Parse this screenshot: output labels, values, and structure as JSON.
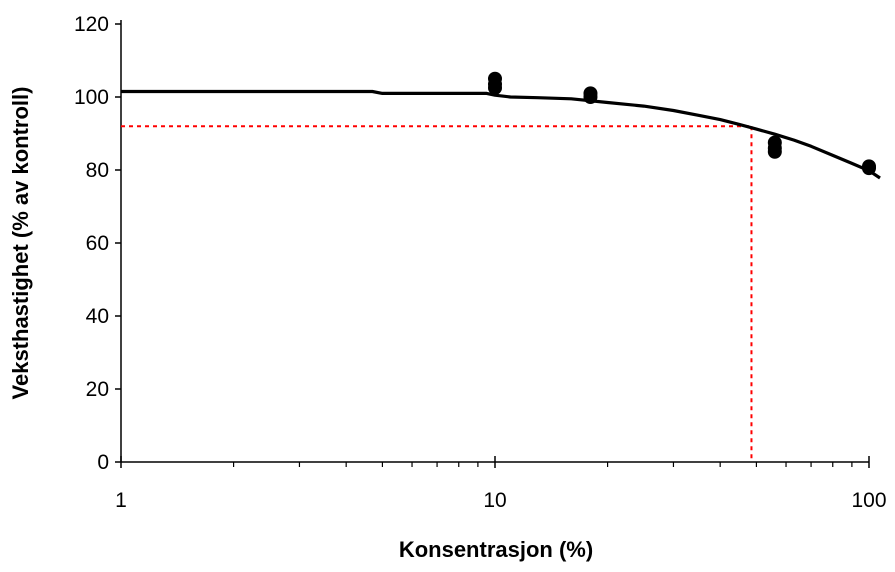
{
  "chart_data": {
    "type": "scatter",
    "title": "",
    "xlabel": "Konsentrasjon (%)",
    "ylabel": "Veksthastighet (% av kontroll)",
    "xscale": "log",
    "xlim": [
      1,
      100
    ],
    "ylim": [
      0,
      120
    ],
    "x_ticks": [
      1,
      10,
      100
    ],
    "y_ticks": [
      0,
      20,
      40,
      60,
      80,
      100,
      120
    ],
    "grid": false,
    "legend": "none",
    "series": [
      {
        "type": "scatter",
        "color": "#000000",
        "points": [
          {
            "x": 10,
            "y": 105
          },
          {
            "x": 10,
            "y": 103.5
          },
          {
            "x": 10,
            "y": 102.5
          },
          {
            "x": 18,
            "y": 101
          },
          {
            "x": 18,
            "y": 100
          },
          {
            "x": 56,
            "y": 87.5
          },
          {
            "x": 56,
            "y": 86
          },
          {
            "x": 56,
            "y": 85
          },
          {
            "x": 100,
            "y": 81
          },
          {
            "x": 100,
            "y": 80.5
          }
        ]
      },
      {
        "type": "line",
        "color": "#000000",
        "points": [
          {
            "x": 1,
            "y": 101.5
          },
          {
            "x": 4.7,
            "y": 101.5
          },
          {
            "x": 5,
            "y": 101
          },
          {
            "x": 9.5,
            "y": 101
          },
          {
            "x": 10,
            "y": 100.5
          },
          {
            "x": 11,
            "y": 100
          },
          {
            "x": 13,
            "y": 99.8
          },
          {
            "x": 16,
            "y": 99.5
          },
          {
            "x": 20,
            "y": 98.5
          },
          {
            "x": 25,
            "y": 97.5
          },
          {
            "x": 30,
            "y": 96.3
          },
          {
            "x": 35,
            "y": 95
          },
          {
            "x": 40,
            "y": 93.8
          },
          {
            "x": 45,
            "y": 92.5
          },
          {
            "x": 50,
            "y": 91.2
          },
          {
            "x": 56,
            "y": 89.8
          },
          {
            "x": 63,
            "y": 88.2
          },
          {
            "x": 70,
            "y": 86.5
          },
          {
            "x": 80,
            "y": 84
          },
          {
            "x": 90,
            "y": 81.8
          },
          {
            "x": 100,
            "y": 79.8
          },
          {
            "x": 107,
            "y": 77.8
          }
        ]
      }
    ],
    "reference_lines": {
      "color": "#ff0000",
      "style": "dotted",
      "x": 48.5,
      "y": 92
    }
  }
}
